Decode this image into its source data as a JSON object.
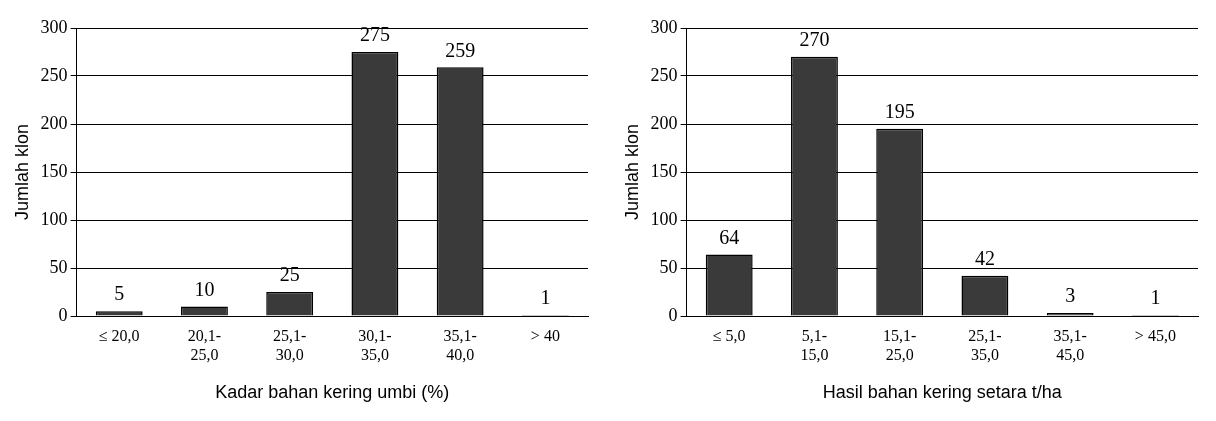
{
  "chart_data": [
    {
      "type": "bar",
      "xlabel": "Kadar bahan kering umbi (%)",
      "ylabel": "Jumlah klon",
      "categories": [
        "≤ 20,0",
        "20,1-25,0",
        "25,1-30,0",
        "30,1-35,0",
        "35,1-40,0",
        "> 40"
      ],
      "values": [
        5,
        10,
        25,
        275,
        259,
        1
      ],
      "color": "#3a3a3a",
      "ylim": [
        0,
        300
      ],
      "yticks": [
        0,
        50,
        100,
        150,
        200,
        250,
        300
      ],
      "grid": "y",
      "data_labels": true
    },
    {
      "type": "bar",
      "xlabel": "Hasil bahan kering setara t/ha",
      "ylabel": "Jumlah klon",
      "categories": [
        "≤ 5,0",
        "5,1-15,0",
        "15,1-25,0",
        "25,1-35,0",
        "35,1-45,0",
        "> 45,0"
      ],
      "values": [
        64,
        270,
        195,
        42,
        3,
        1
      ],
      "color": "#3a3a3a",
      "ylim": [
        0,
        300
      ],
      "yticks": [
        0,
        50,
        100,
        150,
        200,
        250,
        300
      ],
      "grid": "y",
      "data_labels": true
    }
  ]
}
